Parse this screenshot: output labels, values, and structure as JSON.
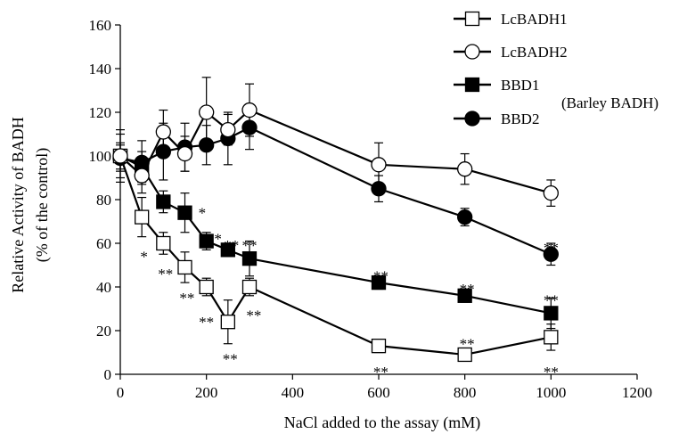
{
  "chart_data": {
    "type": "line",
    "xlabel": "NaCl added to the assay (mM)",
    "ylabel_lines": [
      "Relative Activity of BADH",
      "(% of the control)"
    ],
    "xlim": [
      0,
      1200
    ],
    "ylim": [
      0,
      160
    ],
    "xticks": [
      0,
      200,
      400,
      600,
      800,
      1000,
      1200
    ],
    "yticks": [
      0,
      20,
      40,
      60,
      80,
      100,
      120,
      140,
      160
    ],
    "grid": false,
    "legend_position": "top-right",
    "legend_note": "(Barley BADH)",
    "series": [
      {
        "name": "LcBADH1",
        "marker": "square-open",
        "x": [
          0,
          50,
          100,
          150,
          200,
          250,
          300,
          600,
          800,
          1000
        ],
        "y": [
          100,
          72,
          60,
          49,
          40,
          24,
          40,
          13,
          9,
          17
        ],
        "err": [
          10,
          9,
          5,
          7,
          4,
          10,
          4,
          3,
          3,
          6
        ]
      },
      {
        "name": "LcBADH2",
        "marker": "circle-open",
        "x": [
          0,
          50,
          100,
          150,
          200,
          250,
          300,
          600,
          800,
          1000
        ],
        "y": [
          100,
          91,
          111,
          101,
          120,
          112,
          121,
          96,
          94,
          83
        ],
        "err": [
          12,
          8,
          10,
          8,
          16,
          7,
          12,
          10,
          7,
          6
        ]
      },
      {
        "name": "BBD1",
        "marker": "square-filled",
        "x": [
          0,
          50,
          100,
          150,
          200,
          250,
          300,
          600,
          800,
          1000
        ],
        "y": [
          100,
          95,
          79,
          74,
          61,
          57,
          53,
          42,
          36,
          28
        ],
        "err": [
          6,
          7,
          5,
          9,
          4,
          3,
          8,
          3,
          3,
          7
        ]
      },
      {
        "name": "BBD2",
        "marker": "circle-filled",
        "x": [
          0,
          50,
          100,
          150,
          200,
          250,
          300,
          600,
          800,
          1000
        ],
        "y": [
          99,
          97,
          102,
          104,
          105,
          108,
          113,
          85,
          72,
          55
        ],
        "err": [
          6,
          10,
          13,
          11,
          9,
          12,
          10,
          6,
          4,
          5
        ]
      }
    ],
    "annotations": [
      {
        "text": "*",
        "x": 55,
        "y": 55
      },
      {
        "text": "**",
        "x": 105,
        "y": 47
      },
      {
        "text": "**",
        "x": 155,
        "y": 36
      },
      {
        "text": "**",
        "x": 200,
        "y": 25
      },
      {
        "text": "**",
        "x": 255,
        "y": 8
      },
      {
        "text": "**",
        "x": 310,
        "y": 28
      },
      {
        "text": "*",
        "x": 190,
        "y": 75
      },
      {
        "text": "**",
        "x": 218,
        "y": 63
      },
      {
        "text": "**",
        "x": 258,
        "y": 60
      },
      {
        "text": "**",
        "x": 300,
        "y": 60
      },
      {
        "text": "**",
        "x": 605,
        "y": 46
      },
      {
        "text": "**",
        "x": 805,
        "y": 40
      },
      {
        "text": "**",
        "x": 1000,
        "y": 35
      },
      {
        "text": "**",
        "x": 1000,
        "y": 59
      },
      {
        "text": "**",
        "x": 605,
        "y": 2
      },
      {
        "text": "**",
        "x": 805,
        "y": 15
      },
      {
        "text": "**",
        "x": 1000,
        "y": 2
      }
    ]
  }
}
